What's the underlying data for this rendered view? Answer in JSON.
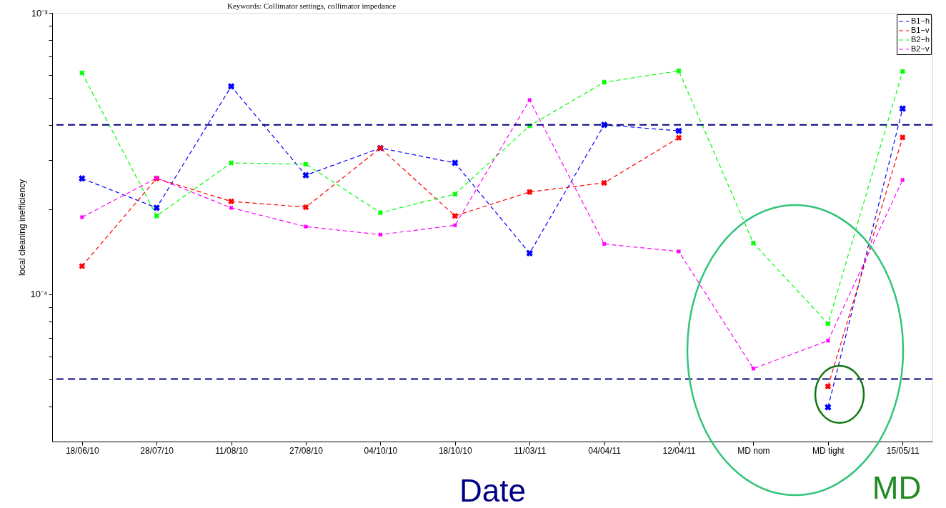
{
  "chart_data": {
    "type": "line",
    "ylabel": "local cleaning inefficiency",
    "xlabel": "Date",
    "categories": [
      "18/06/10",
      "28/07/10",
      "11/08/10",
      "27/08/10",
      "04/10/10",
      "18/10/10",
      "11/03/11",
      "04/04/11",
      "12/04/11",
      "MD nom",
      "MD tight",
      "15/05/11"
    ],
    "series": [
      {
        "name": "B1−h",
        "color": "#0000ff",
        "values": [
          0.000258,
          0.000203,
          0.000548,
          0.000265,
          0.000331,
          0.000293,
          0.00014,
          0.0004,
          0.000381,
          null,
          3.97e-05,
          0.000457
        ]
      },
      {
        "name": "B1−v",
        "color": "#ff0000",
        "values": [
          0.000126,
          0.000258,
          0.000214,
          0.000204,
          0.000331,
          0.00019,
          0.000231,
          0.000249,
          0.00036,
          null,
          4.71e-05,
          0.000361
        ]
      },
      {
        "name": "B2−h",
        "color": "#00ff00",
        "values": [
          0.000612,
          0.00019,
          0.000293,
          0.00029,
          0.000195,
          0.000227,
          0.000397,
          0.000567,
          0.000622,
          0.000152,
          7.87e-05,
          0.000619
        ]
      },
      {
        "name": "B2−v",
        "color": "#ff00ff",
        "values": [
          0.000188,
          0.000259,
          0.000203,
          0.000174,
          0.000163,
          0.000176,
          0.00049,
          0.000151,
          0.000142,
          5.45e-05,
          6.84e-05,
          0.000255
        ]
      }
    ],
    "log": true,
    "ylim": [
      3e-05,
      0.001
    ],
    "yticks": [
      {
        "value": 4e-05,
        "label": null
      },
      {
        "value": 5e-05,
        "label": null
      },
      {
        "value": 6e-05,
        "label": null
      },
      {
        "value": 7e-05,
        "label": null
      },
      {
        "value": 8e-05,
        "label": null
      },
      {
        "value": 9e-05,
        "label": null
      },
      {
        "value": 0.0001,
        "label": "10⁻⁴"
      },
      {
        "value": 0.0002,
        "label": null
      },
      {
        "value": 0.0003,
        "label": null
      },
      {
        "value": 0.0004,
        "label": null
      },
      {
        "value": 0.0005,
        "label": null
      },
      {
        "value": 0.0006,
        "label": null
      },
      {
        "value": 0.0007,
        "label": null
      },
      {
        "value": 0.0008,
        "label": null
      },
      {
        "value": 0.0009,
        "label": null
      },
      {
        "value": 0.001,
        "label": "10⁻³"
      }
    ],
    "ref_lines": [
      {
        "axis": "y",
        "value": 0.0004,
        "color": "#000080",
        "line_style": "dashed"
      },
      {
        "axis": "y",
        "value": 5e-05,
        "color": "#000080",
        "line_style": "dashed"
      }
    ],
    "annotations": [
      "Keywords:  Collimator settings, collimator impedance",
      "MD"
    ],
    "legend": "top right",
    "grid": false,
    "marker": "cross",
    "line_style": "dashed"
  }
}
